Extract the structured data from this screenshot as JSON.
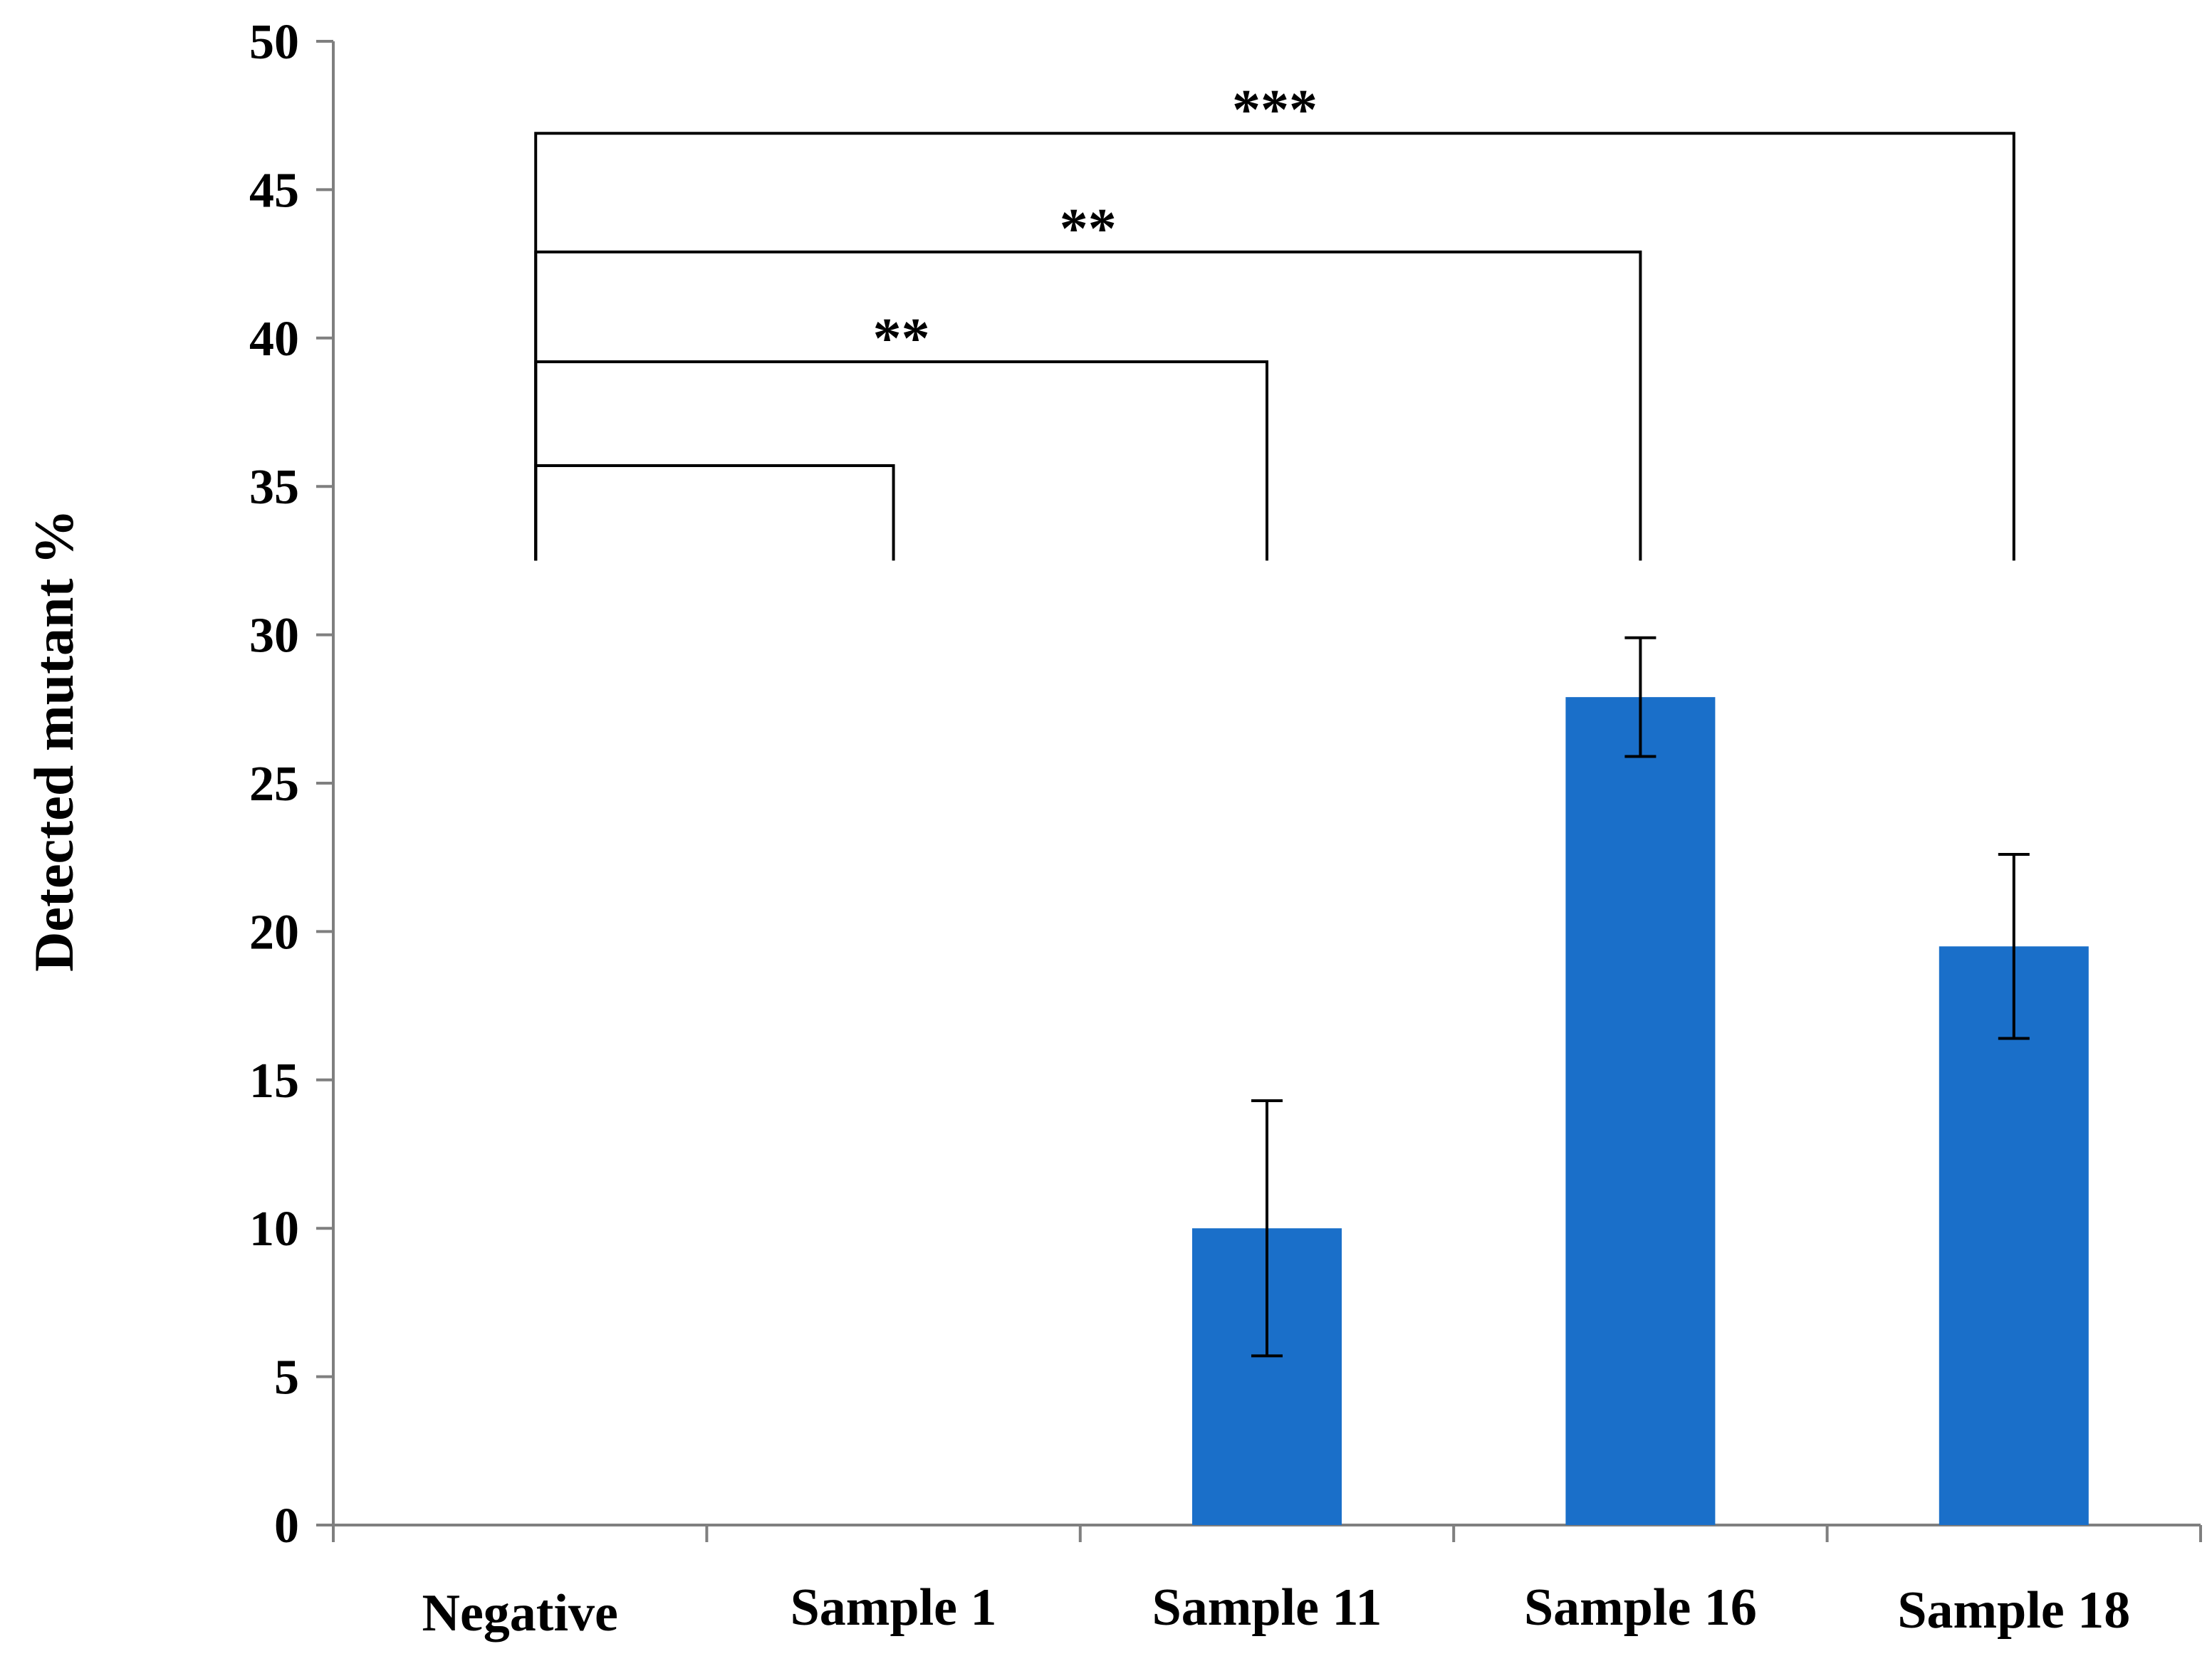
{
  "chart_data": {
    "type": "bar",
    "title": "",
    "xlabel": "",
    "ylabel": "Detected mutant  %",
    "ylim": [
      0,
      50
    ],
    "yticks": [
      "0",
      "5",
      "10",
      "15",
      "20",
      "25",
      "30",
      "35",
      "40",
      "45",
      "50"
    ],
    "categories": [
      "Negative",
      "Sample 1",
      "Sample 11",
      "Sample 16",
      "Sample 18"
    ],
    "series": [
      {
        "name": "Detected mutant %",
        "values": [
          0,
          0,
          10.0,
          27.9,
          19.5
        ],
        "error": [
          0,
          0,
          4.3,
          2.0,
          3.1
        ]
      }
    ],
    "bar_color": "#1a6fc9",
    "grid": false,
    "significance": [
      {
        "from": "Negative",
        "to": "Sample 1",
        "level": 35.7,
        "label": ""
      },
      {
        "from": "Negative",
        "to": "Sample 11",
        "level": 39.2,
        "label": "**"
      },
      {
        "from": "Negative",
        "to": "Sample 16",
        "level": 42.9,
        "label": "**"
      },
      {
        "from": "Negative",
        "to": "Sample 18",
        "level": 46.9,
        "label": "***"
      }
    ],
    "bracket_base": 32.5
  }
}
